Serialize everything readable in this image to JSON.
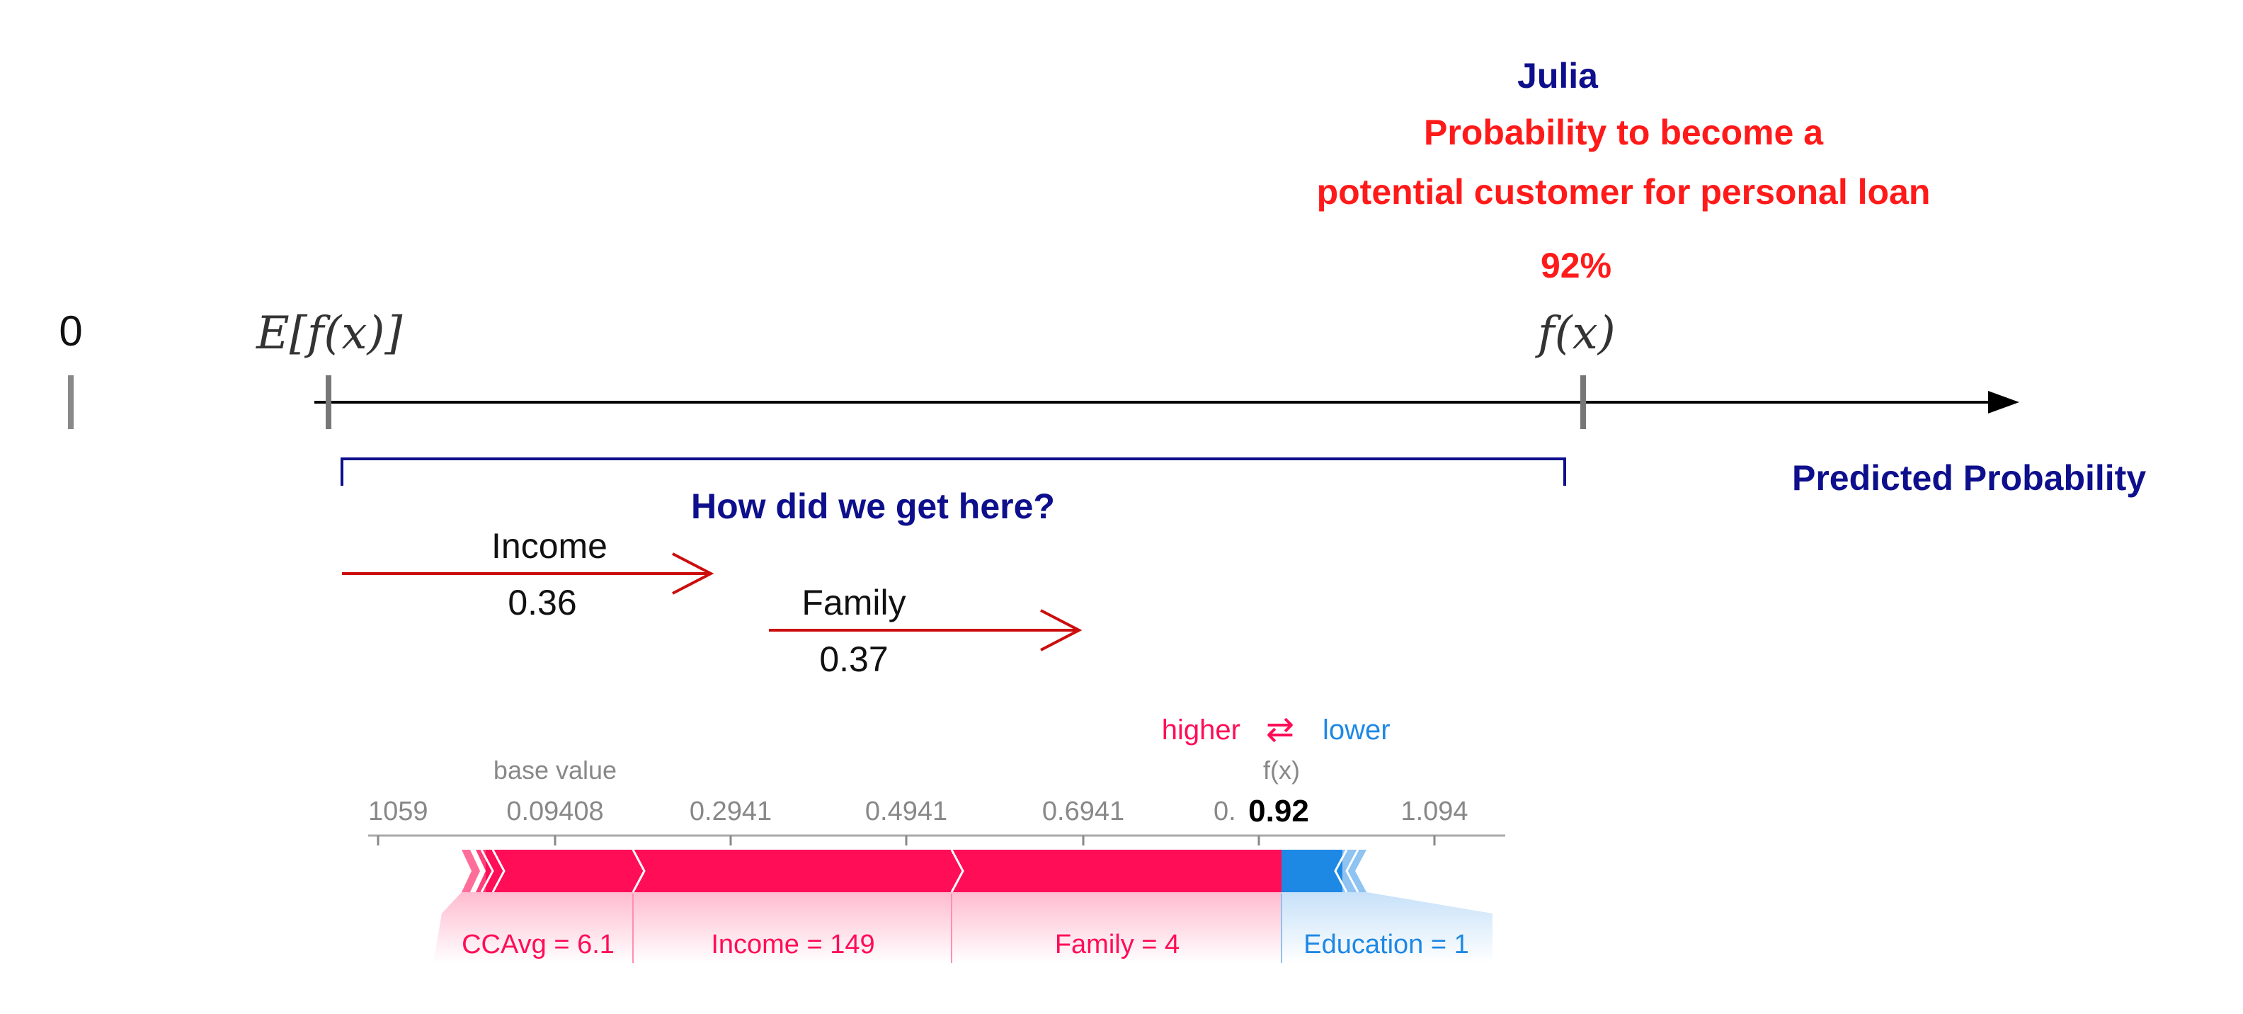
{
  "header": {
    "name": "Julia",
    "line1": "Probability to become a",
    "line2": "potential customer for personal loan",
    "percent": "92%"
  },
  "axis": {
    "zero_label": "0",
    "ef_label": "E[f(x)]",
    "fx_label": "f(x)",
    "axis_title": "Predicted Probability",
    "question": "How did we get here?"
  },
  "contributions": [
    {
      "feature": "Income",
      "value": "0.36"
    },
    {
      "feature": "Family",
      "value": "0.37"
    }
  ],
  "force_plot": {
    "legend_higher": "higher",
    "legend_arrows": "⇄",
    "legend_lower": "lower",
    "base_value_label": "base value",
    "fx_label": "f(x)",
    "fx_value": "0.92",
    "fx_partial_tick": "0.",
    "ticks": [
      "1059",
      "0.09408",
      "0.2941",
      "0.4941",
      "0.6941",
      "1.094"
    ],
    "segments": [
      {
        "label": "CCAvg = 6.1",
        "direction": "higher"
      },
      {
        "label": "Income = 149",
        "direction": "higher"
      },
      {
        "label": "Family = 4",
        "direction": "higher"
      },
      {
        "label": "Education = 1",
        "direction": "lower"
      }
    ]
  },
  "colors": {
    "navy": "#0d0f8c",
    "red": "#ff1a1a",
    "arrow_red": "#cc0d0d",
    "higher_pink": "#ff0d57",
    "lower_blue": "#1e88e5",
    "gray": "#777777"
  }
}
